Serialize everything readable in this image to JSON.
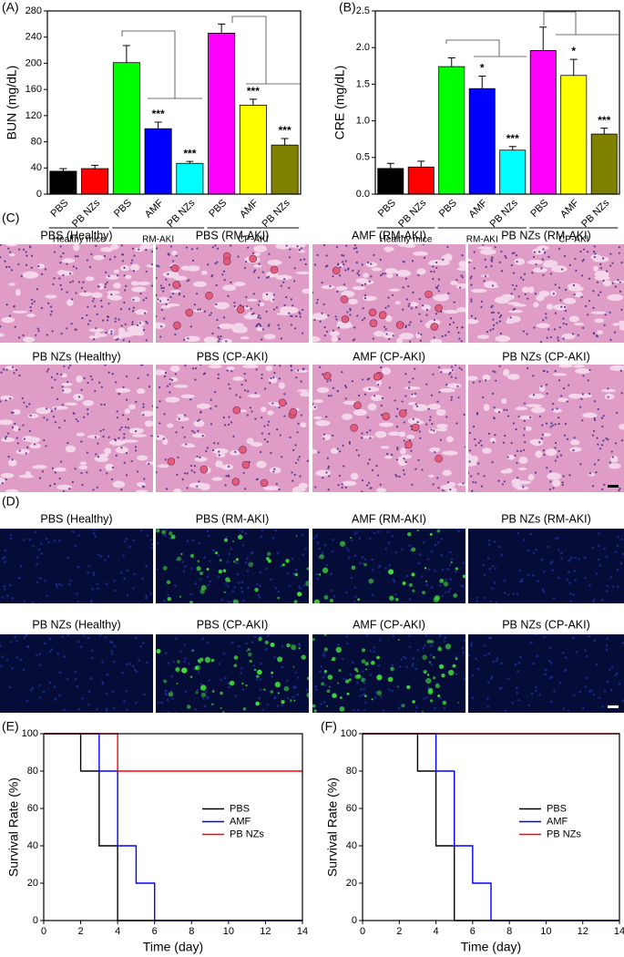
{
  "chart_data": [
    {
      "type": "bar",
      "panel_label": "(A)",
      "y_label": "BUN (mg/dL)",
      "categories": [
        "PBS",
        "PB NZs",
        "PBS",
        "AMF",
        "PB NZs",
        "PBS",
        "AMF",
        "PB NZs"
      ],
      "values": [
        35,
        39,
        201,
        100,
        47,
        246,
        136,
        75
      ],
      "errors": [
        4,
        5,
        26,
        10,
        3,
        14,
        9,
        10
      ],
      "stars": [
        null,
        null,
        null,
        "***",
        "***",
        null,
        "***",
        "***"
      ],
      "colors": [
        "#000000",
        "#ff0000",
        "#00ff00",
        "#0000ff",
        "#00ffff",
        "#ff00ff",
        "#ffff00",
        "#808000"
      ],
      "groups": [
        {
          "name": "Healthy mice",
          "categories": [
            0,
            1
          ]
        },
        {
          "name": "RM-AKI",
          "categories": [
            2,
            3,
            4
          ]
        },
        {
          "name": "CP-AKI",
          "categories": [
            5,
            6,
            7
          ]
        }
      ],
      "ylim": [
        0,
        280
      ],
      "yticks": [
        0,
        40,
        80,
        120,
        160,
        200,
        240,
        280
      ]
    },
    {
      "type": "bar",
      "panel_label": "(B)",
      "y_label": "CRE (mg/dL)",
      "categories": [
        "PBS",
        "PB NZs",
        "PBS",
        "AMF",
        "PB NZs",
        "PBS",
        "AMF",
        "PB NZs"
      ],
      "values": [
        0.35,
        0.37,
        1.74,
        1.44,
        0.6,
        1.96,
        1.62,
        0.82
      ],
      "errors": [
        0.07,
        0.08,
        0.12,
        0.17,
        0.05,
        0.32,
        0.22,
        0.08
      ],
      "stars": [
        null,
        null,
        null,
        "*",
        "***",
        null,
        "*",
        "***"
      ],
      "colors": [
        "#000000",
        "#ff0000",
        "#00ff00",
        "#0000ff",
        "#00ffff",
        "#ff00ff",
        "#ffff00",
        "#808000"
      ],
      "groups": [
        {
          "name": "Healthy mice",
          "categories": [
            0,
            1
          ]
        },
        {
          "name": "RM-AKI",
          "categories": [
            2,
            3,
            4
          ]
        },
        {
          "name": "CP-AKI",
          "categories": [
            5,
            6,
            7
          ]
        }
      ],
      "ylim": [
        0,
        2.5
      ],
      "yticks": [
        {
          "value": 0,
          "label": "0.0"
        },
        0.5,
        {
          "value": 1,
          "label": "1.0"
        },
        1.5,
        {
          "value": 2,
          "label": "2.0"
        },
        2.5
      ]
    },
    {
      "type": "line",
      "panel_label": "(E)",
      "x_label": "Time (day)",
      "y_label": "Survival Rate (%)",
      "legend_position": "center right",
      "series": [
        {
          "name": "PBS",
          "color": "#000000",
          "x": [
            0,
            2,
            2,
            3,
            3,
            4,
            4,
            14
          ],
          "values": [
            100,
            100,
            80,
            80,
            40,
            40,
            0,
            0
          ]
        },
        {
          "name": "AMF",
          "color": "#0000ff",
          "x": [
            0,
            3,
            3,
            4,
            4,
            5,
            5,
            6,
            6,
            14
          ],
          "values": [
            100,
            100,
            80,
            80,
            40,
            40,
            20,
            20,
            0,
            0
          ]
        },
        {
          "name": "PB NZs",
          "color": "#ff0000",
          "x": [
            0,
            4,
            4,
            14
          ],
          "values": [
            100,
            100,
            80,
            80
          ]
        }
      ],
      "xlim": [
        0,
        14
      ],
      "xticks": [
        0,
        2,
        4,
        6,
        8,
        10,
        12,
        14
      ],
      "ylim": [
        0,
        100
      ],
      "yticks": [
        0,
        20,
        40,
        60,
        80,
        100
      ]
    },
    {
      "type": "line",
      "panel_label": "(F)",
      "x_label": "Time (day)",
      "y_label": "Survival Rate (%)",
      "legend_position": "center right",
      "series": [
        {
          "name": "PBS",
          "color": "#000000",
          "x": [
            0,
            3,
            3,
            4,
            4,
            5,
            5,
            14
          ],
          "values": [
            100,
            100,
            80,
            80,
            40,
            40,
            0,
            0
          ]
        },
        {
          "name": "AMF",
          "color": "#0000ff",
          "x": [
            0,
            4,
            4,
            5,
            5,
            6,
            6,
            7,
            7,
            14
          ],
          "values": [
            100,
            100,
            80,
            80,
            40,
            40,
            20,
            20,
            0,
            0
          ]
        },
        {
          "name": "PB NZs",
          "color": "#ff0000",
          "x": [
            0,
            14
          ],
          "values": [
            100,
            100
          ]
        }
      ],
      "xlim": [
        0,
        14
      ],
      "xticks": [
        0,
        2,
        4,
        6,
        8,
        10,
        12,
        14
      ],
      "ylim": [
        0,
        100
      ],
      "yticks": [
        0,
        20,
        40,
        60,
        80,
        100
      ]
    }
  ],
  "histology": {
    "panel_label": "(C)",
    "titles": [
      "PBS (Healthy)",
      "PBS (RM-AKI)",
      "AMF (RM-AKI)",
      "PB NZs (RM-AKI)",
      "PB NZs (Healthy)",
      "PBS (CP-AKI)",
      "AMF (CP-AKI)",
      "PB NZs (CP-AKI)"
    ]
  },
  "fluorescence": {
    "panel_label": "(D)",
    "titles": [
      "PBS (Healthy)",
      "PBS (RM-AKI)",
      "AMF (RM-AKI)",
      "PB NZs (RM-AKI)",
      "PB NZs (Healthy)",
      "PBS (CP-AKI)",
      "AMF (CP-AKI)",
      "PB NZs (CP-AKI)"
    ]
  }
}
